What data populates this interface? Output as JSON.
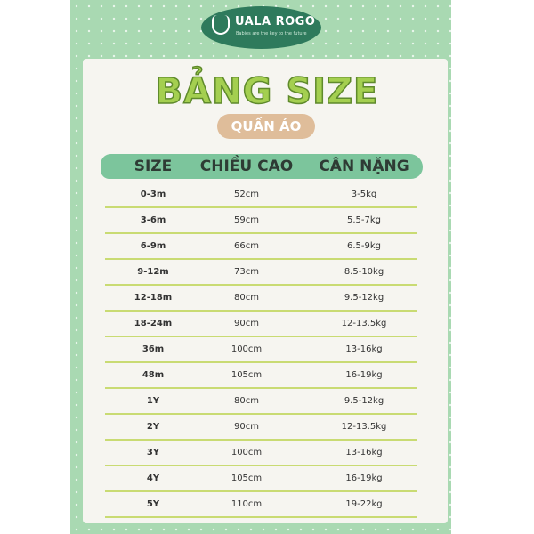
{
  "brand": {
    "name": "UALA ROGO",
    "tagline": "Babies are the key to the future"
  },
  "title": "BẢNG SIZE",
  "subtitle": "QUẦN ÁO",
  "table": {
    "headers": [
      "SIZE",
      "CHIỀU CAO",
      "CÂN NẶNG"
    ],
    "rows": [
      [
        "0-3m",
        "52cm",
        "3-5kg"
      ],
      [
        "3-6m",
        "59cm",
        "5.5-7kg"
      ],
      [
        "6-9m",
        "66cm",
        "6.5-9kg"
      ],
      [
        "9-12m",
        "73cm",
        "8.5-10kg"
      ],
      [
        "12-18m",
        "80cm",
        "9.5-12kg"
      ],
      [
        "18-24m",
        "90cm",
        "12-13.5kg"
      ],
      [
        "36m",
        "100cm",
        "13-16kg"
      ],
      [
        "48m",
        "105cm",
        "16-19kg"
      ],
      [
        "1Y",
        "80cm",
        "9.5-12kg"
      ],
      [
        "2Y",
        "90cm",
        "12-13.5kg"
      ],
      [
        "3Y",
        "100cm",
        "13-16kg"
      ],
      [
        "4Y",
        "105cm",
        "16-19kg"
      ],
      [
        "5Y",
        "110cm",
        "19-22kg"
      ]
    ]
  },
  "colors": {
    "panel": "#a9d9b2",
    "logo": "#2e7a5c",
    "header": "#7cc59c",
    "title": "#a4cf50",
    "pill": "#dfbd9a",
    "divider": "#c9db73"
  }
}
